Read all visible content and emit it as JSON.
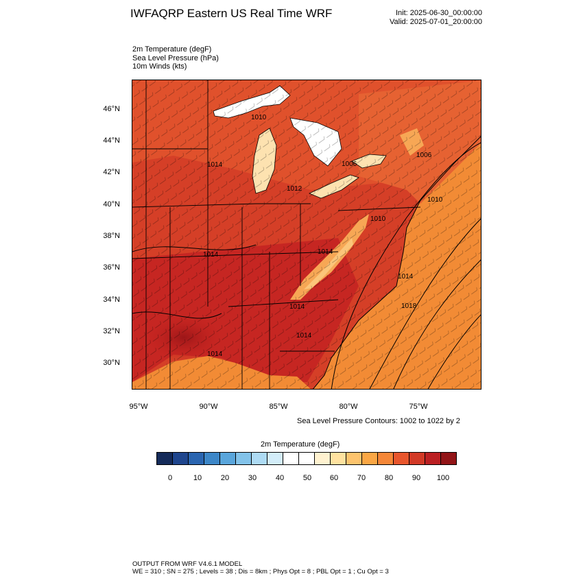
{
  "header": {
    "title": "IWFAQRP Eastern US Real Time WRF",
    "init": "Init: 2025-06-30_00:00:00",
    "valid": "Valid: 2025-07-01_20:00:00"
  },
  "fields": {
    "line1": "2m Temperature   (degF)",
    "line2": "Sea Level Pressure   (hPa)",
    "line3": "10m Winds   (kts)"
  },
  "axes": {
    "lat_labels": [
      "46°N",
      "44°N",
      "42°N",
      "40°N",
      "38°N",
      "36°N",
      "34°N",
      "32°N",
      "30°N"
    ],
    "lon_labels": [
      "95°W",
      "90°W",
      "85°W",
      "80°W",
      "75°W"
    ]
  },
  "map": {
    "pressure_labels": [
      "1010",
      "1014",
      "1006",
      "1006",
      "1012",
      "1010",
      "1010",
      "1014",
      "1014",
      "1014",
      "1018",
      "1014",
      "1014",
      "1014"
    ],
    "colors": {
      "land_hot": "#c9241f",
      "land_warm": "#e35530",
      "ocean": "#f28b35",
      "lake": "#ffffff",
      "mountain": "#fbc57a"
    }
  },
  "contour_note": "Sea Level Pressure Contours: 1002 to 1022 by 2",
  "colorbar": {
    "title": "2m Temperature  (degF)",
    "colors": [
      "#152b5a",
      "#1f468e",
      "#2a65b0",
      "#3d87c8",
      "#5aa6dc",
      "#83c3ea",
      "#aedbf4",
      "#d3edf9",
      "#ffffff",
      "#ffffff",
      "#fff2d0",
      "#ffe2a0",
      "#fdc46e",
      "#fba745",
      "#f58738",
      "#e8562d",
      "#d23a27",
      "#bb2023",
      "#921518"
    ],
    "ticks": [
      "0",
      "10",
      "20",
      "30",
      "40",
      "50",
      "60",
      "70",
      "80",
      "90",
      "100"
    ]
  },
  "footer": {
    "line1": "OUTPUT FROM WRF V4.6.1 MODEL",
    "line2": "WE = 310 ; SN = 275 ; Levels = 38 ; Dis = 8km ; Phys Opt = 8 ; PBL Opt = 1 ; Cu Opt = 3"
  }
}
